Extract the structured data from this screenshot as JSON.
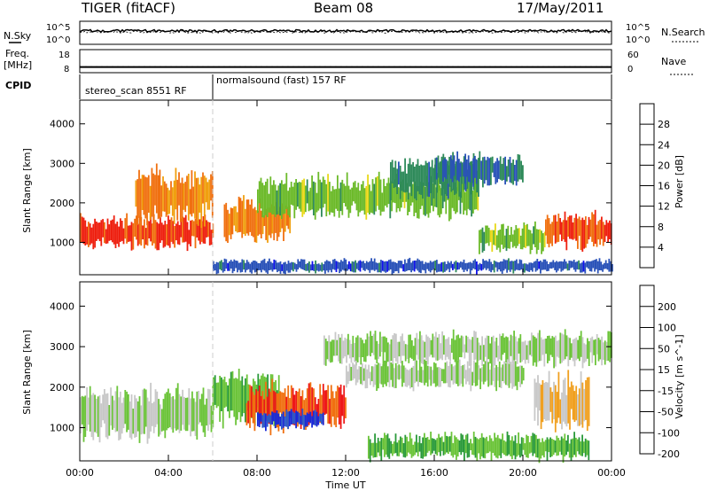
{
  "header": {
    "title": "TIGER (fitACF)",
    "beam": "Beam 08",
    "date": "17/May/2011"
  },
  "status_panel": {
    "left_label": "N.Sky",
    "right_label": "N.Search",
    "left_ticks": [
      "10^5",
      "10^0"
    ],
    "right_ticks": [
      "10^5",
      "10^0"
    ],
    "n_sky_level": 3,
    "n_search_level": 2.7
  },
  "freq_panel": {
    "left_label_1": "Freq.",
    "left_label_2": "[MHz]",
    "right_label": "Nave",
    "left_ticks": [
      "18",
      "8"
    ],
    "right_ticks": [
      "60",
      "0"
    ],
    "freq_mhz": 10,
    "nave": 12
  },
  "cpid_panel": {
    "label": "CPID",
    "segments": [
      {
        "label": "stereo_scan 8551 RF",
        "start_hour": 0,
        "end_hour": 6
      },
      {
        "label": "normalsound (fast) 157 RF",
        "start_hour": 6,
        "end_hour": 24
      }
    ]
  },
  "chart_data": [
    {
      "type": "heatmap",
      "title": "Power",
      "xlabel": "Time UT",
      "ylabel": "Slant Range [km]",
      "xlim": [
        0,
        24
      ],
      "ylim": [
        180,
        4600
      ],
      "x_ticks": [
        "00:00",
        "04:00",
        "08:00",
        "12:00",
        "16:00",
        "20:00",
        "00:00"
      ],
      "y_ticks": [
        "1000",
        "2000",
        "3000",
        "4000"
      ],
      "colorbar_label": "Power [dB]",
      "colorbar_ticks": [
        "4",
        "8",
        "12",
        "16",
        "20",
        "24",
        "28"
      ],
      "colorbar_range": [
        0,
        32
      ],
      "colorbar_colors": [
        "#1010ee",
        "#2a52b8",
        "#2e8a5a",
        "#6cba2a",
        "#e8d818",
        "#f0a010",
        "#f07010",
        "#ee2010"
      ],
      "echo_regions": [
        {
          "t_start": 0,
          "t_end": 6,
          "range_start_km": 900,
          "range_end_km": 1600,
          "power_db": 29
        },
        {
          "t_start": 2.5,
          "t_end": 6,
          "range_start_km": 1600,
          "range_end_km": 2800,
          "power_db": 24
        },
        {
          "t_start": 6.5,
          "t_end": 9.5,
          "range_start_km": 1100,
          "range_end_km": 2000,
          "power_db": 25
        },
        {
          "t_start": 8,
          "t_end": 18,
          "range_start_km": 1700,
          "range_end_km": 2600,
          "power_db": 14
        },
        {
          "t_start": 14,
          "t_end": 18,
          "range_start_km": 2200,
          "range_end_km": 3100,
          "power_db": 10
        },
        {
          "t_start": 16,
          "t_end": 20,
          "range_start_km": 2500,
          "range_end_km": 3200,
          "power_db": 8
        },
        {
          "t_start": 18,
          "t_end": 21,
          "range_start_km": 800,
          "range_end_km": 1400,
          "power_db": 14
        },
        {
          "t_start": 21,
          "t_end": 24,
          "range_start_km": 900,
          "range_end_km": 1700,
          "power_db": 28
        },
        {
          "t_start": 6,
          "t_end": 24,
          "range_start_km": 250,
          "range_end_km": 550,
          "power_db": 6
        }
      ]
    },
    {
      "type": "heatmap",
      "title": "Velocity",
      "xlabel": "Time UT",
      "ylabel": "Slant Range [km]",
      "xlim": [
        0,
        24
      ],
      "ylim": [
        180,
        4600
      ],
      "x_ticks": [
        "00:00",
        "04:00",
        "08:00",
        "12:00",
        "16:00",
        "20:00",
        "00:00"
      ],
      "y_ticks": [
        "1000",
        "2000",
        "3000",
        "4000"
      ],
      "colorbar_label": "Velocity [m s^-1]",
      "colorbar_ticks": [
        "200",
        "100",
        "50",
        "15",
        "-15",
        "-50",
        "-100",
        "-200"
      ],
      "colorbar_range": [
        -250,
        250
      ],
      "colorbar_colors": [
        "#1a2ad8",
        "#2a5ac8",
        "#2a9a3a",
        "#6cc43a",
        "#c8c8c8",
        "#f0a020",
        "#f07010",
        "#ee1818"
      ],
      "echo_regions": [
        {
          "t_start": 0,
          "t_end": 6,
          "range_start_km": 800,
          "range_end_km": 1900,
          "velocity_ms": 0
        },
        {
          "t_start": 6,
          "t_end": 9,
          "range_start_km": 1200,
          "range_end_km": 2300,
          "velocity_ms": -40
        },
        {
          "t_start": 7.5,
          "t_end": 12,
          "range_start_km": 1000,
          "range_end_km": 2000,
          "velocity_ms": 180
        },
        {
          "t_start": 8,
          "t_end": 11,
          "range_start_km": 1000,
          "range_end_km": 1400,
          "velocity_ms": -200
        },
        {
          "t_start": 11,
          "t_end": 24,
          "range_start_km": 2600,
          "range_end_km": 3300,
          "velocity_ms": 0
        },
        {
          "t_start": 12,
          "t_end": 20,
          "range_start_km": 2000,
          "range_end_km": 2600,
          "velocity_ms": 0
        },
        {
          "t_start": 20.5,
          "t_end": 23,
          "range_start_km": 1000,
          "range_end_km": 2200,
          "velocity_ms": 60
        },
        {
          "t_start": 13,
          "t_end": 23,
          "range_start_km": 250,
          "range_end_km": 800,
          "velocity_ms": -60
        }
      ]
    }
  ],
  "x_axis_label": "Time UT"
}
